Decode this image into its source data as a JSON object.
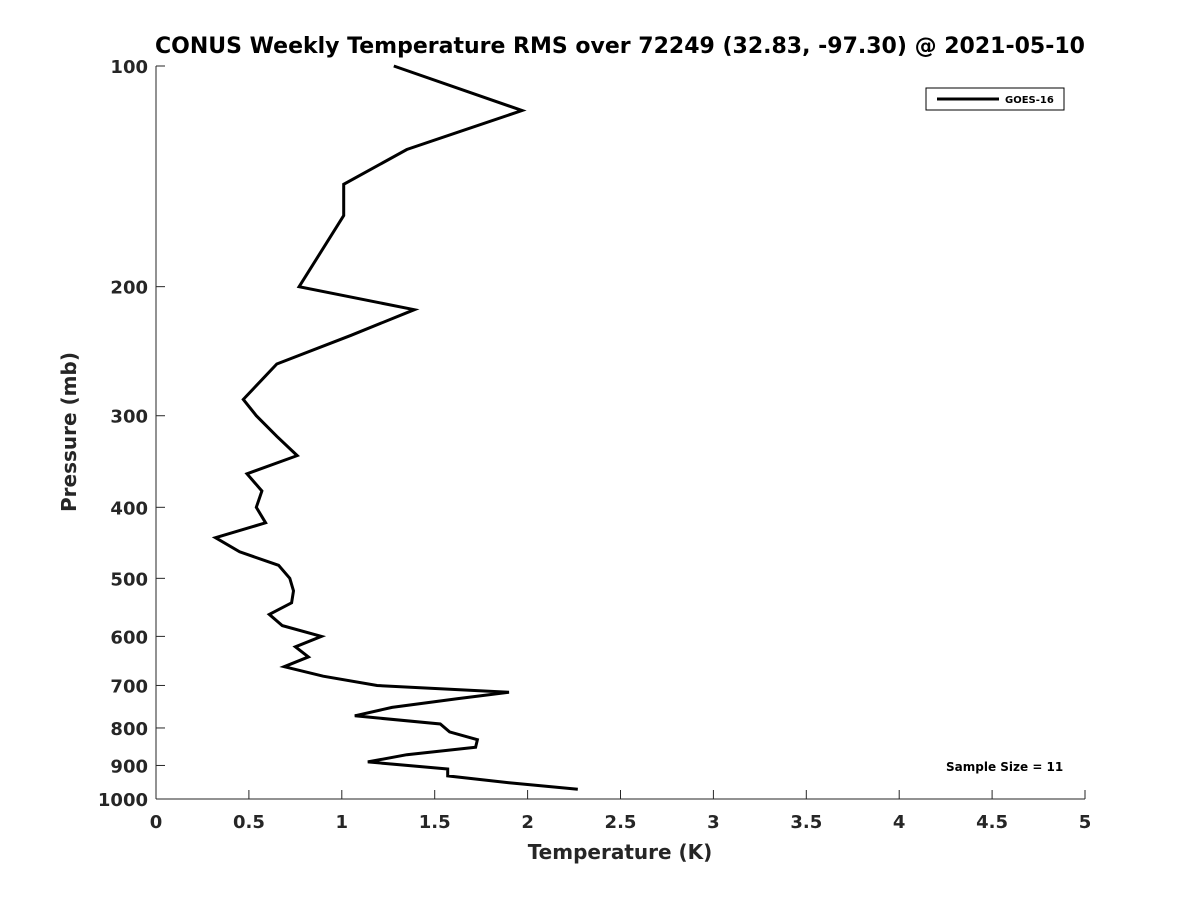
{
  "chart_data": {
    "type": "line",
    "title": "CONUS Weekly Temperature RMS over 72249 (32.83, -97.30) @ 2021-05-10",
    "xlabel": "Temperature (K)",
    "ylabel": "Pressure (mb)",
    "xlim": [
      0,
      5
    ],
    "ylim": [
      100,
      1000
    ],
    "y_scale": "log",
    "y_reversed": true,
    "x_ticks": [
      0,
      0.5,
      1,
      1.5,
      2,
      2.5,
      3,
      3.5,
      4,
      4.5,
      5
    ],
    "x_tick_labels": [
      "0",
      "0.5",
      "1",
      "1.5",
      "2",
      "2.5",
      "3",
      "3.5",
      "4",
      "4.5",
      "5"
    ],
    "y_ticks": [
      100,
      200,
      300,
      400,
      500,
      600,
      700,
      800,
      900,
      1000
    ],
    "y_tick_labels": [
      "100",
      "200",
      "300",
      "400",
      "500",
      "600",
      "700",
      "800",
      "900",
      "1000"
    ],
    "grid": false,
    "legend_position": "top-right",
    "annotation": "Sample Size = 11",
    "series": [
      {
        "name": "GOES-16",
        "color": "#000000",
        "points": [
          [
            1.28,
            100
          ],
          [
            1.97,
            115
          ],
          [
            1.35,
            130
          ],
          [
            1.01,
            145
          ],
          [
            1.01,
            160
          ],
          [
            0.77,
            200
          ],
          [
            1.39,
            215
          ],
          [
            1.05,
            233
          ],
          [
            0.65,
            255
          ],
          [
            0.47,
            285
          ],
          [
            0.54,
            300
          ],
          [
            0.65,
            320
          ],
          [
            0.76,
            340
          ],
          [
            0.49,
            360
          ],
          [
            0.57,
            380
          ],
          [
            0.54,
            400
          ],
          [
            0.59,
            420
          ],
          [
            0.32,
            440
          ],
          [
            0.45,
            460
          ],
          [
            0.66,
            480
          ],
          [
            0.72,
            500
          ],
          [
            0.74,
            520
          ],
          [
            0.73,
            540
          ],
          [
            0.61,
            560
          ],
          [
            0.68,
            580
          ],
          [
            0.89,
            600
          ],
          [
            0.75,
            620
          ],
          [
            0.82,
            640
          ],
          [
            0.69,
            660
          ],
          [
            0.9,
            680
          ],
          [
            1.19,
            700
          ],
          [
            1.9,
            715
          ],
          [
            1.62,
            730
          ],
          [
            1.27,
            750
          ],
          [
            1.07,
            770
          ],
          [
            1.53,
            790
          ],
          [
            1.58,
            810
          ],
          [
            1.73,
            830
          ],
          [
            1.72,
            850
          ],
          [
            1.35,
            870
          ],
          [
            1.14,
            890
          ],
          [
            1.57,
            910
          ],
          [
            1.57,
            930
          ],
          [
            1.9,
            950
          ],
          [
            2.27,
            970
          ]
        ]
      }
    ]
  }
}
